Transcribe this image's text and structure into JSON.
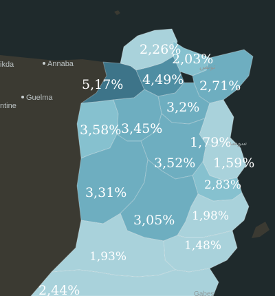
{
  "colors": {
    "sea": "#1f2a2c",
    "land": "#3b3a32",
    "light": "#a9d2db",
    "mid": "#86c1cf",
    "medium": "#6eaec0",
    "dark": "#4f8ea3",
    "darkest": "#3d7489"
  },
  "cities": {
    "skikda": "ikda",
    "annaba": "Annaba",
    "guelma": "Guelma",
    "constantine": "ntine",
    "tunis_arabic": "تونس",
    "sousse_arabic": "سوسة",
    "gabes": "Gabes"
  },
  "regions": {
    "bizerte": "2,26%",
    "ariana": "2,03%",
    "jendouba": "5,17%",
    "beja": "4,49%",
    "nabeul": "2,71%",
    "zaghouan": "3,2%",
    "kef": "3,58%",
    "siliana": "3,45%",
    "monastir": "1,79%",
    "kairouan": "3,52%",
    "mahdia": "1,59%",
    "sfax_north": "2,83%",
    "kasserine": "3,31%",
    "sidi_bouzid": "3,05%",
    "sfax": "1,98%",
    "gabes_region": "1,48%",
    "gafsa": "1,93%",
    "tozeur": "2,44%"
  }
}
